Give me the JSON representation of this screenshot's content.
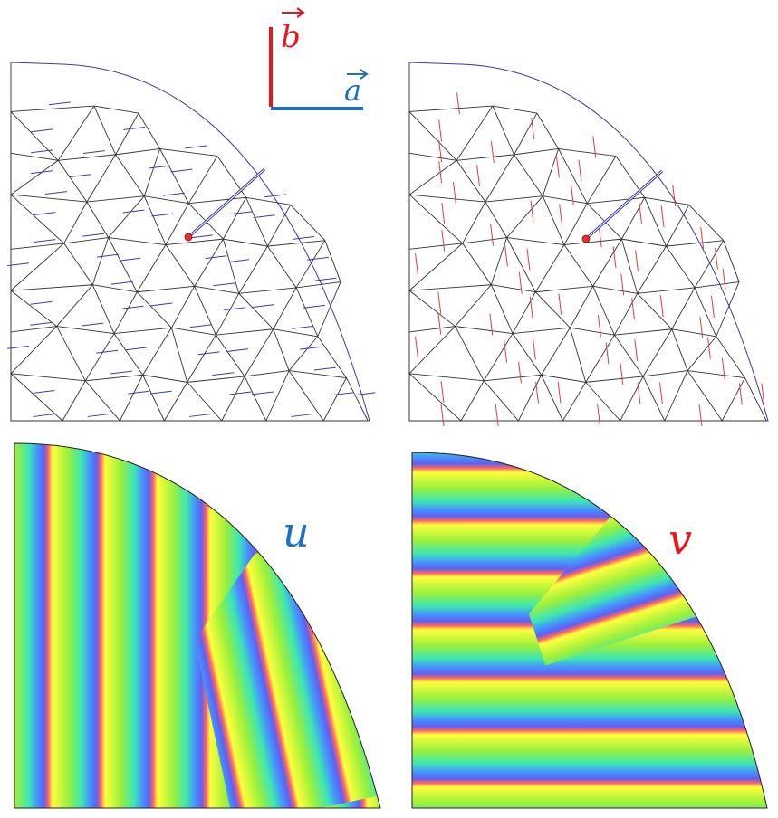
{
  "axes_legend": {
    "a_label": "a",
    "b_label": "b",
    "a_color": "#1f6fbf",
    "b_color": "#e8151b"
  },
  "panels": {
    "u_label": "u",
    "v_label": "v",
    "u_color": "#1f6fbf",
    "v_color": "#e8151b"
  },
  "colors": {
    "mesh_edge": "#333333",
    "boundary": "#3a3aa0",
    "singularity": "#e53030",
    "cross_field_a": "#3a3ab8",
    "cross_field_b": "#e83a3a"
  },
  "stripe_palette": [
    "#ffff3c",
    "#9bf03c",
    "#3ce68c",
    "#46a0ff",
    "#5a5af0",
    "#ff6464",
    "#ffaa50"
  ]
}
